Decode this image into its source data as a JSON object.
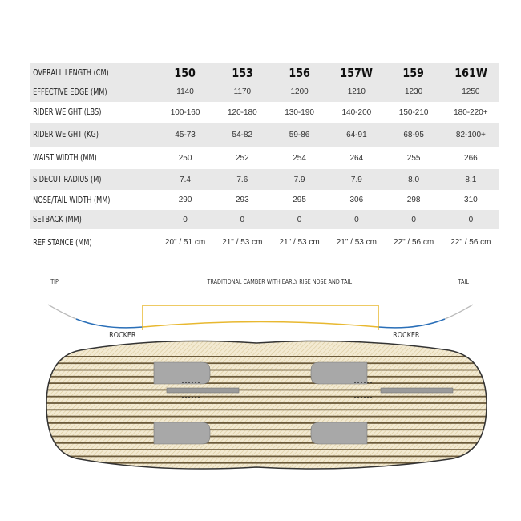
{
  "table": {
    "header": {
      "label": "OVERALL LENGTH  (CM)",
      "sizes": [
        "150",
        "153",
        "156",
        "157W",
        "159",
        "161W"
      ]
    },
    "rows": [
      {
        "label": "EFFECTIVE EDGE (MM)",
        "values": [
          "1140",
          "1170",
          "1200",
          "1210",
          "1230",
          "1250"
        ]
      },
      {
        "label": "RIDER WEIGHT  (LBS)",
        "values": [
          "100-160",
          "120-180",
          "130-190",
          "140-200",
          "150-210",
          "180-220+"
        ]
      },
      {
        "label": "RIDER WEIGHT  (KG)",
        "values": [
          "45-73",
          "54-82",
          "59-86",
          "64-91",
          "68-95",
          "82-100+"
        ]
      },
      {
        "label": "WAIST WIDTH  (MM)",
        "values": [
          "250",
          "252",
          "254",
          "264",
          "255",
          "266"
        ]
      },
      {
        "label": "SIDECUT RADIUS  (M)",
        "values": [
          "7.4",
          "7.6",
          "7.9",
          "7.9",
          "8.0",
          "8.1"
        ]
      },
      {
        "label": "NOSE/TAIL WIDTH (MM)",
        "values": [
          "290",
          "293",
          "295",
          "306",
          "298",
          "310"
        ]
      },
      {
        "label": "SETBACK (MM)",
        "values": [
          "0",
          "0",
          "0",
          "0",
          "0",
          "0"
        ]
      },
      {
        "label": "REF STANCE  (MM)",
        "values": [
          "20\" / 51 cm",
          "21\" / 53 cm",
          "21\" / 53 cm",
          "21\" / 53 cm",
          "22\" / 56 cm",
          "22\" / 56 cm"
        ]
      }
    ]
  },
  "profile": {
    "tip": "TIP",
    "tail": "TAIL",
    "title": "TRADITIONAL CAMBER WITH EARLY RISE NOSE AND TAIL",
    "rocker_left": "ROCKER",
    "rocker_right": "ROCKER"
  },
  "colors": {
    "camber": "#e8b830",
    "rocker": "#2a6fb8",
    "tip_tail": "#bbbbbb",
    "board_fill": "#f3ead2",
    "stripe": "#6b5a3a"
  }
}
